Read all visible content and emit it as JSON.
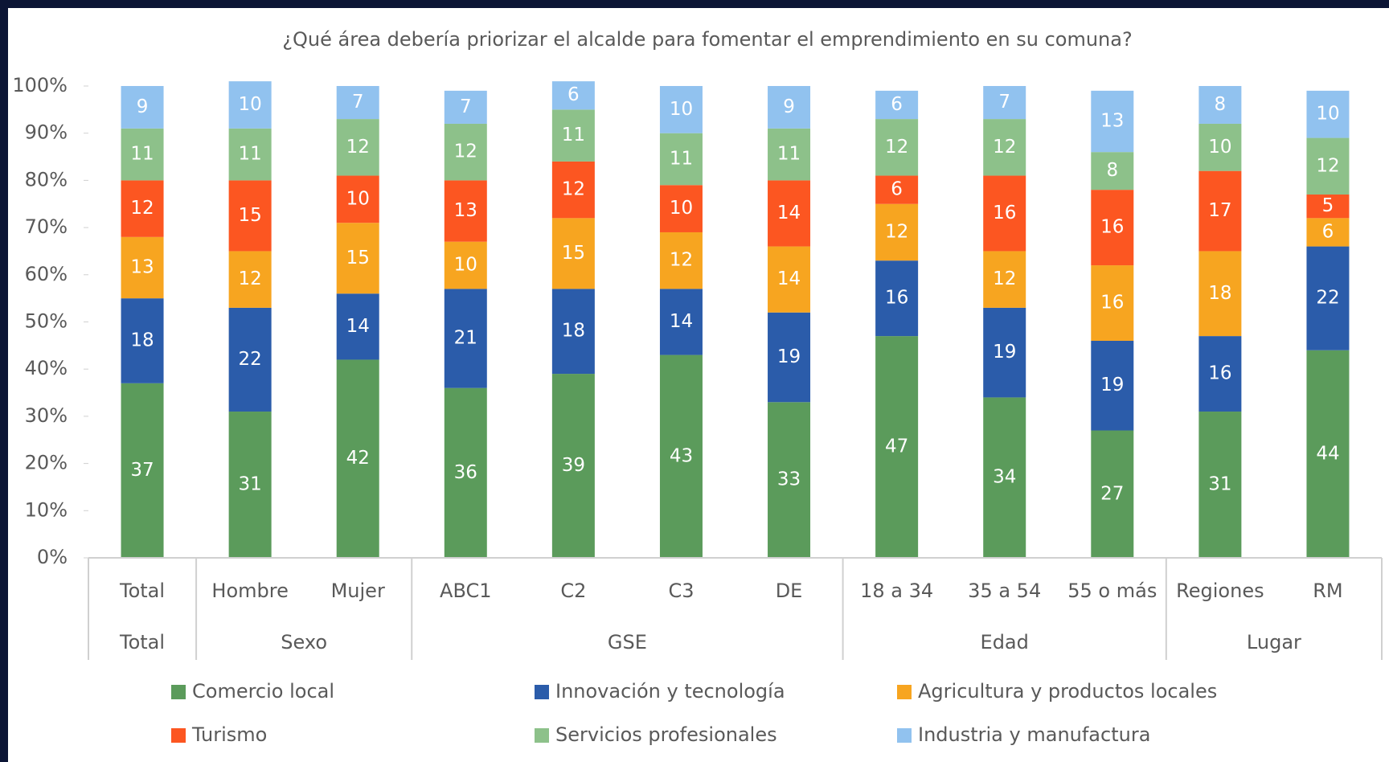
{
  "chart_data": {
    "type": "stacked_bar",
    "title": "¿Qué área debería priorizar el alcalde para fomentar el emprendimiento en su comuna?",
    "categories": [
      "Total",
      "Hombre",
      "Mujer",
      "ABC1",
      "C2",
      "C3",
      "DE",
      "18 a 34",
      "35 a 54",
      "55 o más",
      "Regiones",
      "RM"
    ],
    "groups": [
      {
        "name": "Total",
        "size": 1
      },
      {
        "name": "Sexo",
        "size": 2
      },
      {
        "name": "GSE",
        "size": 4
      },
      {
        "name": "Edad",
        "size": 3
      },
      {
        "name": "Lugar",
        "size": 2
      }
    ],
    "series": [
      {
        "name": "Comercio local",
        "color": "#5b9b5b",
        "values": [
          37,
          31,
          42,
          36,
          39,
          43,
          33,
          47,
          34,
          27,
          31,
          44
        ]
      },
      {
        "name": "Innovación y tecnología",
        "color": "#2b5caa",
        "values": [
          18,
          22,
          14,
          21,
          18,
          14,
          19,
          16,
          19,
          19,
          16,
          22
        ]
      },
      {
        "name": "Agricultura y productos locales",
        "color": "#f7a520",
        "values": [
          13,
          12,
          15,
          10,
          15,
          12,
          14,
          12,
          12,
          16,
          18,
          6
        ]
      },
      {
        "name": "Turismo",
        "color": "#fc5621",
        "values": [
          12,
          15,
          10,
          13,
          12,
          10,
          14,
          6,
          16,
          16,
          17,
          5
        ]
      },
      {
        "name": "Servicios profesionales",
        "color": "#8dc18a",
        "values": [
          11,
          11,
          12,
          12,
          11,
          11,
          11,
          12,
          12,
          8,
          10,
          12
        ]
      },
      {
        "name": "Industria y manufactura",
        "color": "#91c2ef",
        "values": [
          9,
          10,
          7,
          7,
          6,
          10,
          9,
          6,
          7,
          13,
          8,
          10
        ]
      }
    ],
    "ylim": [
      0,
      100
    ],
    "yticks": [
      {
        "value": 0,
        "label": "0%"
      },
      {
        "value": 10,
        "label": "10%"
      },
      {
        "value": 20,
        "label": "20%"
      },
      {
        "value": 30,
        "label": "30%"
      },
      {
        "value": 40,
        "label": "40%"
      },
      {
        "value": 50,
        "label": "50%"
      },
      {
        "value": 60,
        "label": "60%"
      },
      {
        "value": 70,
        "label": "70%"
      },
      {
        "value": 80,
        "label": "80%"
      },
      {
        "value": 90,
        "label": "90%"
      },
      {
        "value": 100,
        "label": "100%"
      }
    ],
    "grid": false
  }
}
